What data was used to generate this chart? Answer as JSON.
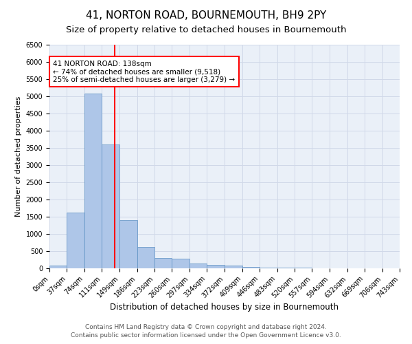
{
  "title": "41, NORTON ROAD, BOURNEMOUTH, BH9 2PY",
  "subtitle": "Size of property relative to detached houses in Bournemouth",
  "xlabel": "Distribution of detached houses by size in Bournemouth",
  "ylabel": "Number of detached properties",
  "footnote1": "Contains HM Land Registry data © Crown copyright and database right 2024.",
  "footnote2": "Contains public sector information licensed under the Open Government Licence v3.0.",
  "annotation_line1": "41 NORTON ROAD: 138sqm",
  "annotation_line2": "← 74% of detached houses are smaller (9,518)",
  "annotation_line3": "25% of semi-detached houses are larger (3,279) →",
  "property_size": 138,
  "bar_edges": [
    0,
    37,
    74,
    111,
    149,
    186,
    223,
    260,
    297,
    334,
    372,
    409,
    446,
    483,
    520,
    557,
    594,
    632,
    669,
    706,
    743
  ],
  "bar_heights": [
    75,
    1625,
    5075,
    3600,
    1400,
    625,
    300,
    290,
    150,
    100,
    75,
    50,
    25,
    20,
    15,
    10,
    5,
    5,
    3,
    3
  ],
  "bar_color": "#aec6e8",
  "bar_edgecolor": "#5a8fc2",
  "vline_color": "red",
  "vline_x": 138,
  "annotation_box_color": "red",
  "annotation_text_color": "black",
  "ylim": [
    0,
    6500
  ],
  "yticks": [
    0,
    500,
    1000,
    1500,
    2000,
    2500,
    3000,
    3500,
    4000,
    4500,
    5000,
    5500,
    6000,
    6500
  ],
  "grid_color": "#d0d8e8",
  "plot_bg_color": "#eaf0f8",
  "title_fontsize": 11,
  "subtitle_fontsize": 9.5,
  "xlabel_fontsize": 8.5,
  "ylabel_fontsize": 8,
  "tick_fontsize": 7,
  "annotation_fontsize": 7.5,
  "footnote_fontsize": 6.5
}
